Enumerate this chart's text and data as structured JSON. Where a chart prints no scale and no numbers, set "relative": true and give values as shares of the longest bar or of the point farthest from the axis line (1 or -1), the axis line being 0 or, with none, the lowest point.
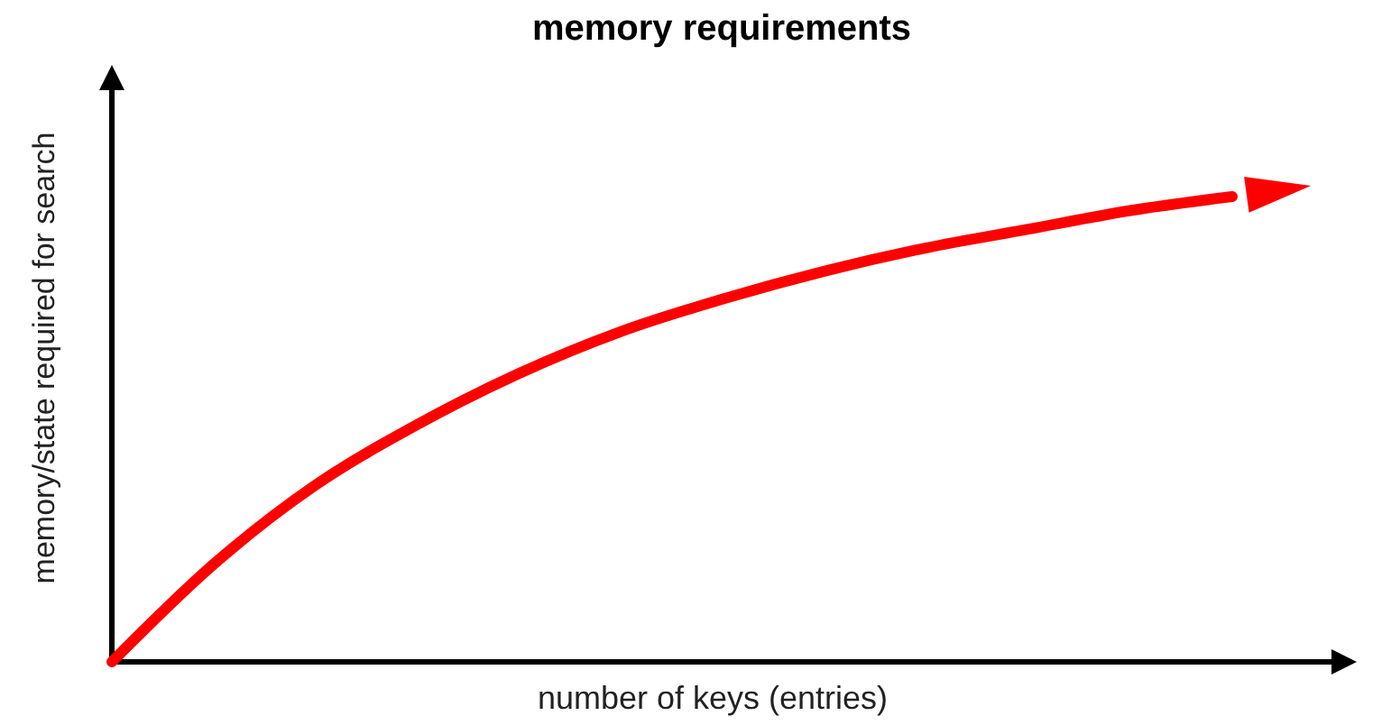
{
  "chart_data": {
    "type": "line",
    "title": "memory requirements",
    "xlabel": "number of keys (entries)",
    "ylabel": "memory/state required for search",
    "relative": true,
    "categories": [
      null,
      null,
      null,
      null,
      null,
      null,
      null,
      null,
      null,
      null,
      null,
      null
    ],
    "series": [
      {
        "color": "#ff0000",
        "values": [
          0,
          0.21,
          0.38,
          0.51,
          0.62,
          0.71,
          0.78,
          0.84,
          0.89,
          0.93,
          0.97,
          1
        ]
      }
    ],
    "marker": "none",
    "line_style": "solid",
    "grid": false
  }
}
